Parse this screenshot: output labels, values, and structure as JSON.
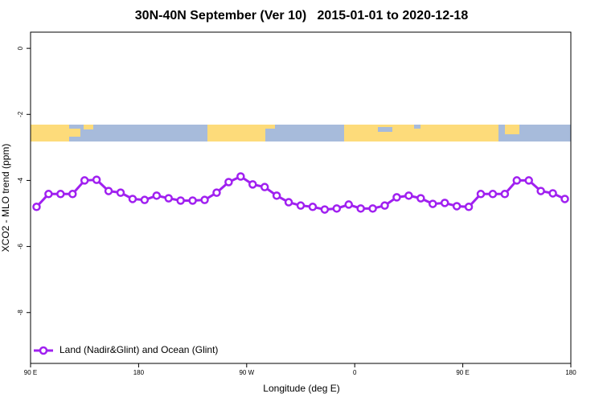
{
  "chart_data": {
    "type": "line",
    "title": "30N-40N September (Ver 10)   2015-01-01 to 2020-12-18",
    "xlabel": "Longitude (deg E)",
    "ylabel": "XCO2 - MLO trend (ppm)",
    "xlim": [
      90,
      540
    ],
    "ylim": [
      -9.54,
      0.49
    ],
    "xticks": [
      {
        "value": 90,
        "label": "90 E"
      },
      180,
      {
        "value": 270,
        "label": "90 W"
      },
      {
        "value": 360,
        "label": "0"
      },
      {
        "value": 450,
        "label": "90 E"
      },
      {
        "value": 540,
        "label": "180"
      }
    ],
    "yticks": [
      0,
      -2,
      -4,
      -6,
      -8
    ],
    "legend": "bottom-left",
    "x": [
      95,
      105,
      115,
      125,
      135,
      145,
      155,
      165,
      175,
      185,
      195,
      205,
      215,
      225,
      235,
      245,
      255,
      265,
      275,
      285,
      295,
      305,
      315,
      325,
      335,
      345,
      355,
      365,
      375,
      385,
      395,
      405,
      415,
      425,
      435,
      445,
      455,
      465,
      475,
      485,
      495,
      505,
      515,
      525,
      535
    ],
    "series": [
      {
        "name": "Land (Nadir&Glint) and Ocean (Glint)",
        "color": "#a020f0",
        "values": [
          -4.8,
          -4.41,
          -4.41,
          -4.41,
          -4.0,
          -3.98,
          -4.32,
          -4.37,
          -4.56,
          -4.59,
          -4.46,
          -4.54,
          -4.61,
          -4.61,
          -4.59,
          -4.37,
          -4.05,
          -3.88,
          -4.12,
          -4.2,
          -4.46,
          -4.66,
          -4.76,
          -4.8,
          -4.88,
          -4.85,
          -4.73,
          -4.85,
          -4.85,
          -4.76,
          -4.51,
          -4.46,
          -4.54,
          -4.71,
          -4.68,
          -4.78,
          -4.8,
          -4.41,
          -4.41,
          -4.41,
          -4.0,
          -4.0,
          -4.32,
          -4.39,
          -4.56
        ]
      }
    ]
  }
}
